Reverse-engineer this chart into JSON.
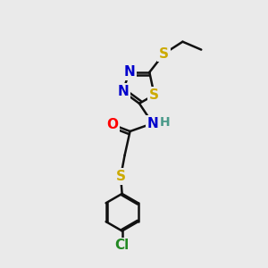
{
  "background_color": "#eaeaea",
  "atom_colors": {
    "N": "#0000cc",
    "S": "#ccaa00",
    "O": "#ff0000",
    "C": "#000000",
    "H": "#4a9a8a",
    "Cl": "#228822"
  },
  "bond_color": "#111111",
  "bond_width": 1.8,
  "figsize": [
    3.0,
    3.0
  ],
  "dpi": 100,
  "font_size_atom": 11
}
